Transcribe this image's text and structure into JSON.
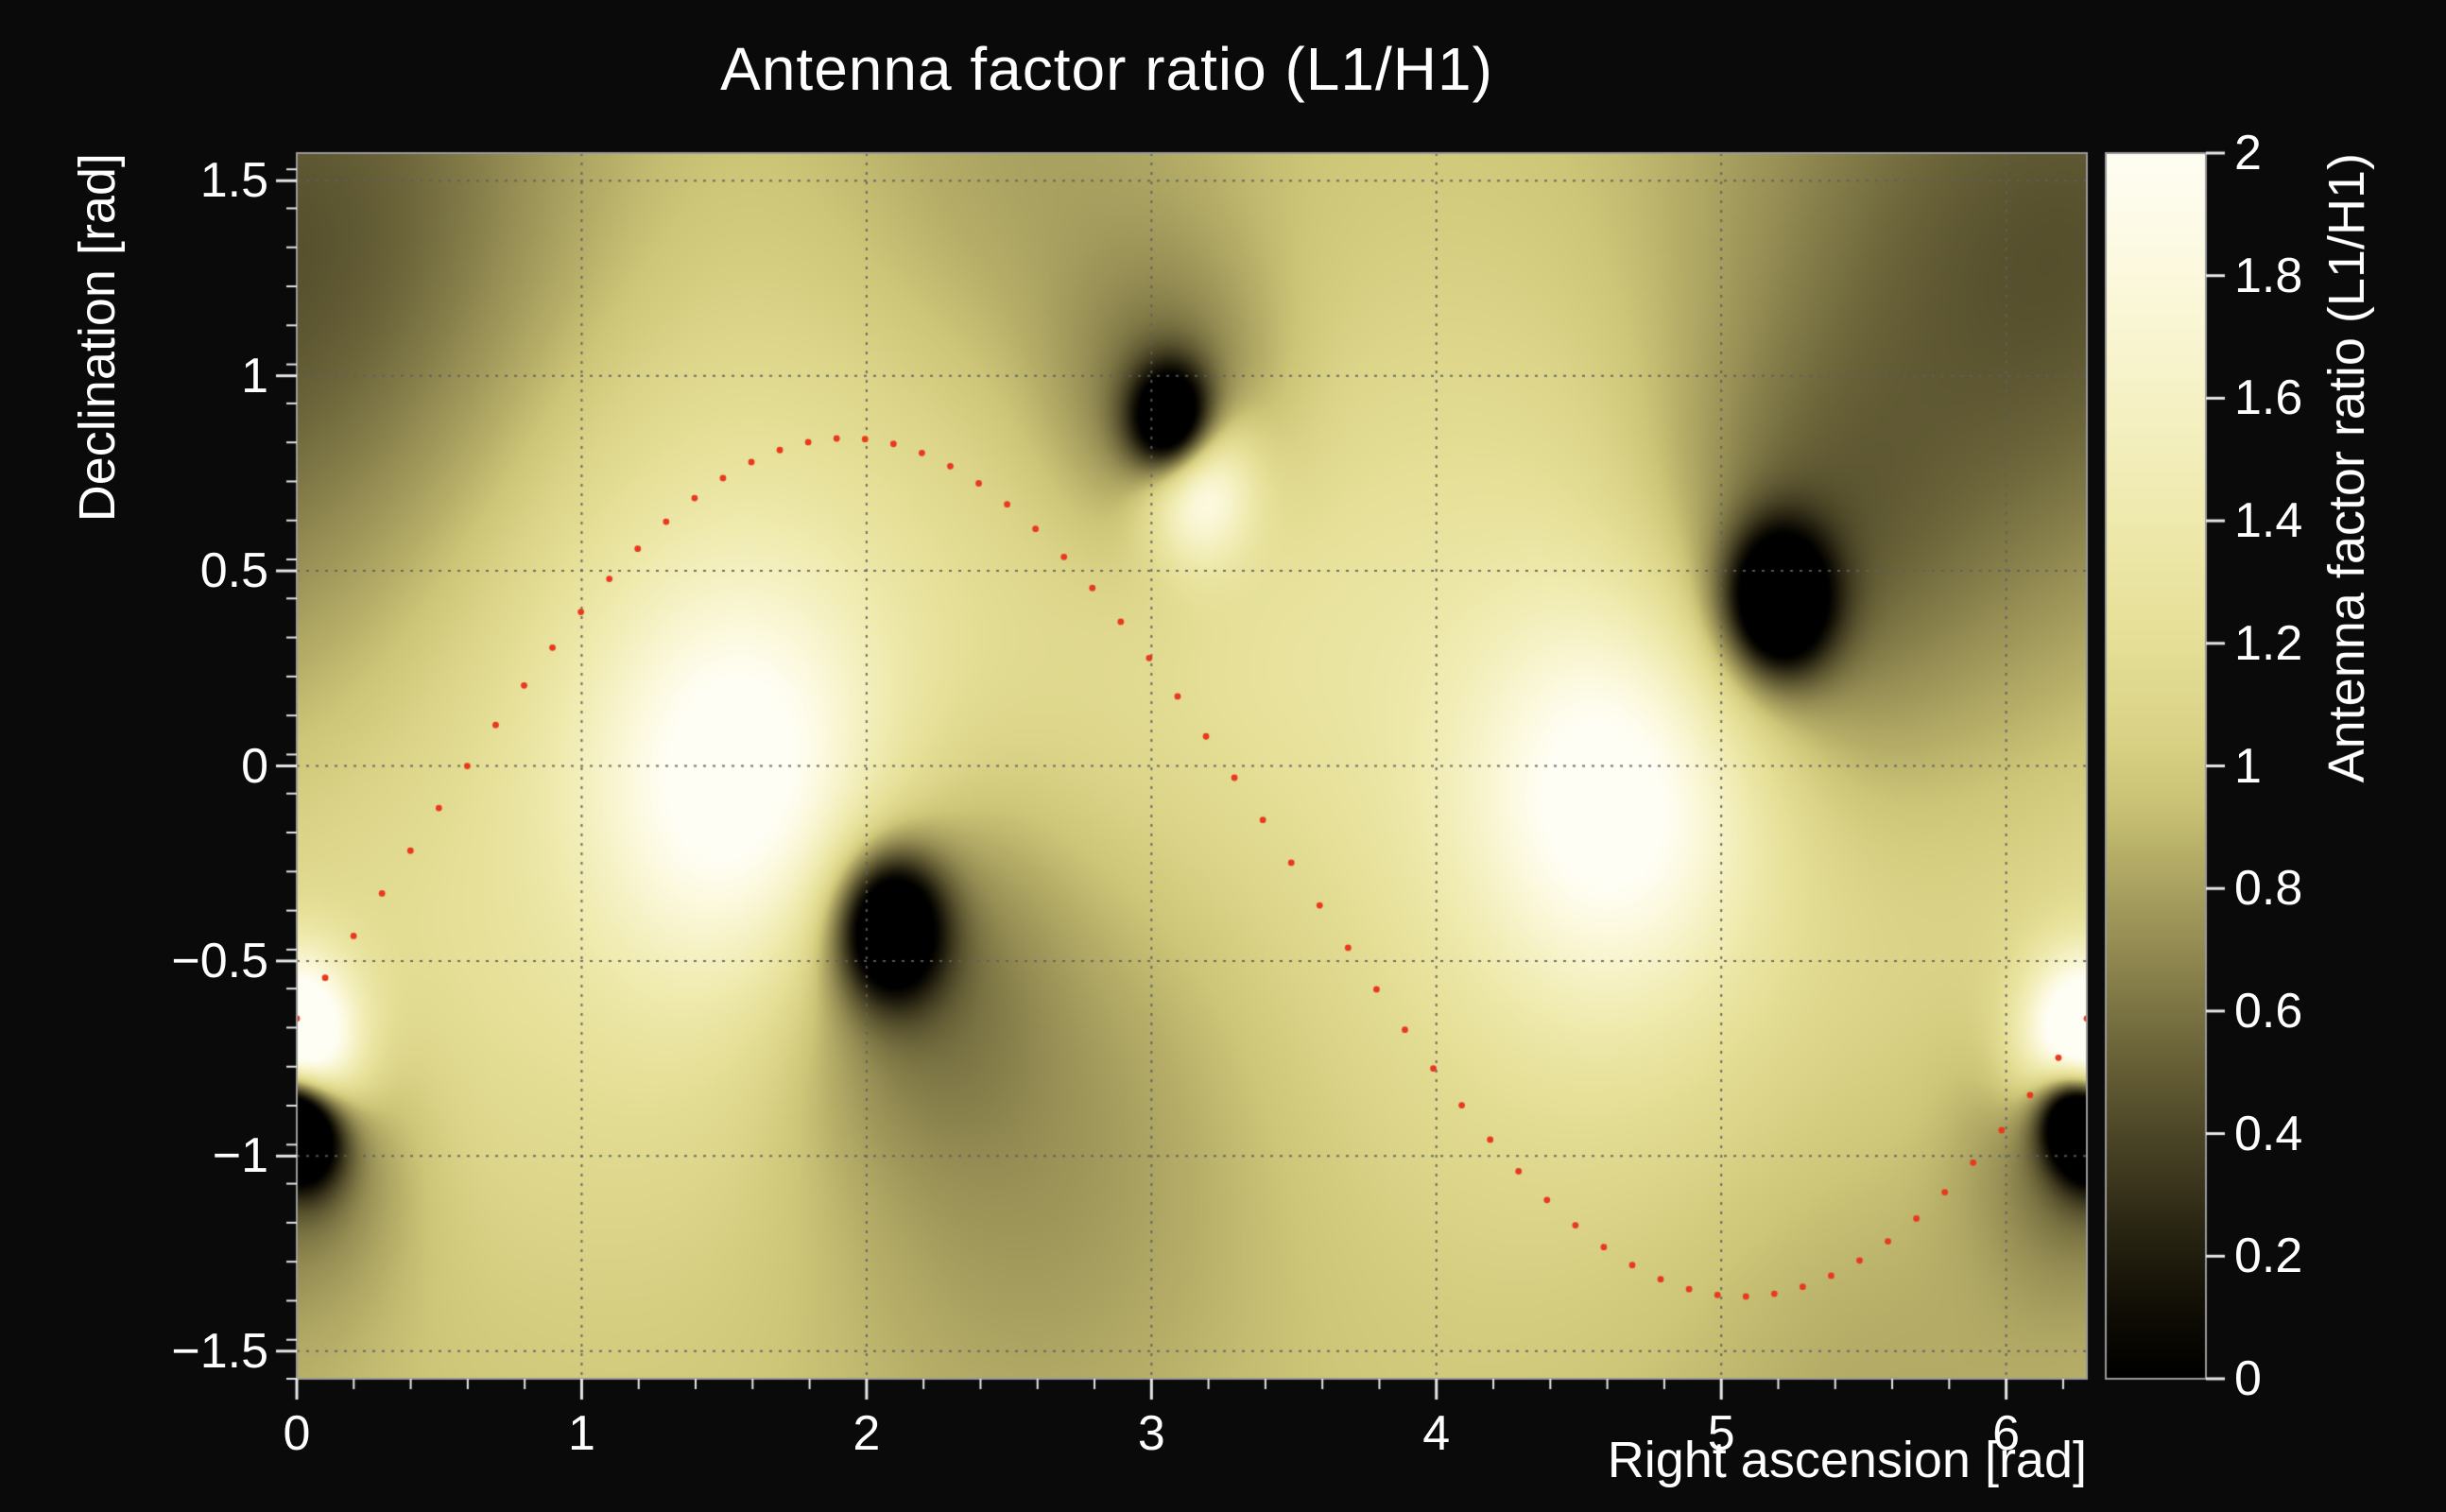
{
  "figure": {
    "background": "#0a0a0a",
    "text_color": "#ffffff"
  },
  "chart_data": {
    "type": "heatmap",
    "title": "Antenna factor ratio (L1/H1)",
    "xlabel": "Right ascension [rad]",
    "ylabel": "Declination [rad]",
    "zlabel": "Antenna factor ratio (L1/H1)",
    "x_range": [
      0,
      6.2832
    ],
    "y_range": [
      -1.5708,
      1.5708
    ],
    "z_range": [
      0,
      2
    ],
    "grid": true,
    "x_ticks": [
      0,
      1,
      2,
      3,
      4,
      5,
      6
    ],
    "x_tick_labels": [
      "0",
      "1",
      "2",
      "3",
      "4",
      "5",
      "6"
    ],
    "x_minor_step": 0.2,
    "y_ticks": [
      -1.5,
      -1,
      -0.5,
      0,
      0.5,
      1,
      1.5
    ],
    "y_tick_labels": [
      "−1.5",
      "−1",
      "−0.5",
      "0",
      "0.5",
      "1",
      "1.5"
    ],
    "y_minor_step": 0.1,
    "z_ticks": [
      0,
      0.2,
      0.4,
      0.6,
      0.8,
      1,
      1.2,
      1.4,
      1.6,
      1.8,
      2
    ],
    "z_tick_labels": [
      "0",
      "0.2",
      "0.4",
      "0.6",
      "0.8",
      "1",
      "1.2",
      "1.4",
      "1.6",
      "1.8",
      "2"
    ],
    "colormap": [
      [
        0.0,
        "#000000"
      ],
      [
        0.12,
        "#120f06"
      ],
      [
        0.25,
        "#2b2714"
      ],
      [
        0.4,
        "#4d4728"
      ],
      [
        0.55,
        "#6f683c"
      ],
      [
        0.7,
        "#938b52"
      ],
      [
        0.85,
        "#b5ad67"
      ],
      [
        0.95,
        "#cdc678"
      ],
      [
        1.05,
        "#dad387"
      ],
      [
        1.2,
        "#e5df97"
      ],
      [
        1.4,
        "#efeaad"
      ],
      [
        1.6,
        "#f6f2c6"
      ],
      [
        1.8,
        "#fcf9de"
      ],
      [
        2.0,
        "#fffef4"
      ]
    ],
    "bright_maxima": [
      {
        "ra": 1.55,
        "dec": 0.0
      },
      {
        "ra": 4.6,
        "dec": 0.0
      },
      {
        "ra": 3.17,
        "dec": 0.71
      },
      {
        "ra": 0.0,
        "dec": -0.7
      },
      {
        "ra": 6.27,
        "dec": -0.73
      }
    ],
    "dark_minima": [
      {
        "ra": 3.07,
        "dec": 0.88
      },
      {
        "ra": 5.2,
        "dec": 0.42
      },
      {
        "ra": 2.08,
        "dec": -0.41
      },
      {
        "ra": 0.03,
        "dec": -0.94
      },
      {
        "ra": 6.23,
        "dec": -0.88
      }
    ],
    "field": {
      "base": 0.95,
      "gaussians": [
        {
          "ra": 1.55,
          "dec": 0.02,
          "sigma": 0.78,
          "amp": 0.5
        },
        {
          "ra": 1.57,
          "dec": -0.05,
          "sigma": 0.34,
          "amp": 0.85
        },
        {
          "ra": 4.6,
          "dec": 0.02,
          "sigma": 0.78,
          "amp": 0.48
        },
        {
          "ra": 4.63,
          "dec": -0.08,
          "sigma": 0.33,
          "amp": 0.85
        },
        {
          "ra": 3.17,
          "dec": 0.71,
          "sigma": 0.13,
          "amp": 1.05
        },
        {
          "ra": 3.3,
          "dec": 0.45,
          "sigma": 0.45,
          "amp": 0.18
        },
        {
          "ra": 0.0,
          "dec": -0.7,
          "sigma": 0.16,
          "amp": 1.0
        },
        {
          "ra": 0.05,
          "dec": -0.75,
          "sigma": 0.45,
          "amp": 0.25
        },
        {
          "ra": 6.27,
          "dec": -0.73,
          "sigma": 0.14,
          "amp": 0.95
        },
        {
          "ra": 3.07,
          "dec": 0.88,
          "sigma": 0.1,
          "amp": -1.4
        },
        {
          "ra": 3.07,
          "dec": 0.9,
          "sigma": 0.28,
          "amp": -0.45
        },
        {
          "ra": 5.2,
          "dec": 0.42,
          "sigma": 0.13,
          "amp": -1.4
        },
        {
          "ra": 5.22,
          "dec": 0.45,
          "sigma": 0.4,
          "amp": -0.45
        },
        {
          "ra": 2.08,
          "dec": -0.41,
          "sigma": 0.13,
          "amp": -1.4
        },
        {
          "ra": 2.1,
          "dec": -0.45,
          "sigma": 0.35,
          "amp": -0.5
        },
        {
          "ra": 2.5,
          "dec": -0.9,
          "sigma": 0.6,
          "amp": -0.28
        },
        {
          "ra": 0.03,
          "dec": -0.94,
          "sigma": 0.1,
          "amp": -1.3
        },
        {
          "ra": 0.05,
          "dec": -0.98,
          "sigma": 0.3,
          "amp": -0.35
        },
        {
          "ra": 6.23,
          "dec": -0.88,
          "sigma": 0.09,
          "amp": -1.3
        },
        {
          "ra": 6.24,
          "dec": -0.92,
          "sigma": 0.25,
          "amp": -0.3
        },
        {
          "ra": 5.8,
          "dec": 1.1,
          "sigma": 0.75,
          "amp": -0.42
        },
        {
          "ra": 0.35,
          "dec": 1.45,
          "sigma": 0.6,
          "amp": -0.25
        },
        {
          "ra": 2.55,
          "dec": 1.5,
          "sigma": 0.55,
          "amp": -0.18
        },
        {
          "ra": 5.6,
          "dec": -1.45,
          "sigma": 0.7,
          "amp": -0.15
        }
      ]
    },
    "overlay_curve": {
      "name": "red-dotted-sky-track",
      "style": "dotted",
      "color": "#e8391f",
      "dot_radius_px": 3.4,
      "model": "dec = offset + amplitude * sin(ra + phase)",
      "offset": -0.26,
      "amplitude": 1.1,
      "phase": -0.36,
      "ra_start": 0,
      "ra_end": 6.2832,
      "n_points": 64
    },
    "style": {
      "grid_color": "rgba(95,95,95,0.9)",
      "frame_color": "#9a9a9a",
      "tick_color": "#e8e8e8"
    }
  }
}
